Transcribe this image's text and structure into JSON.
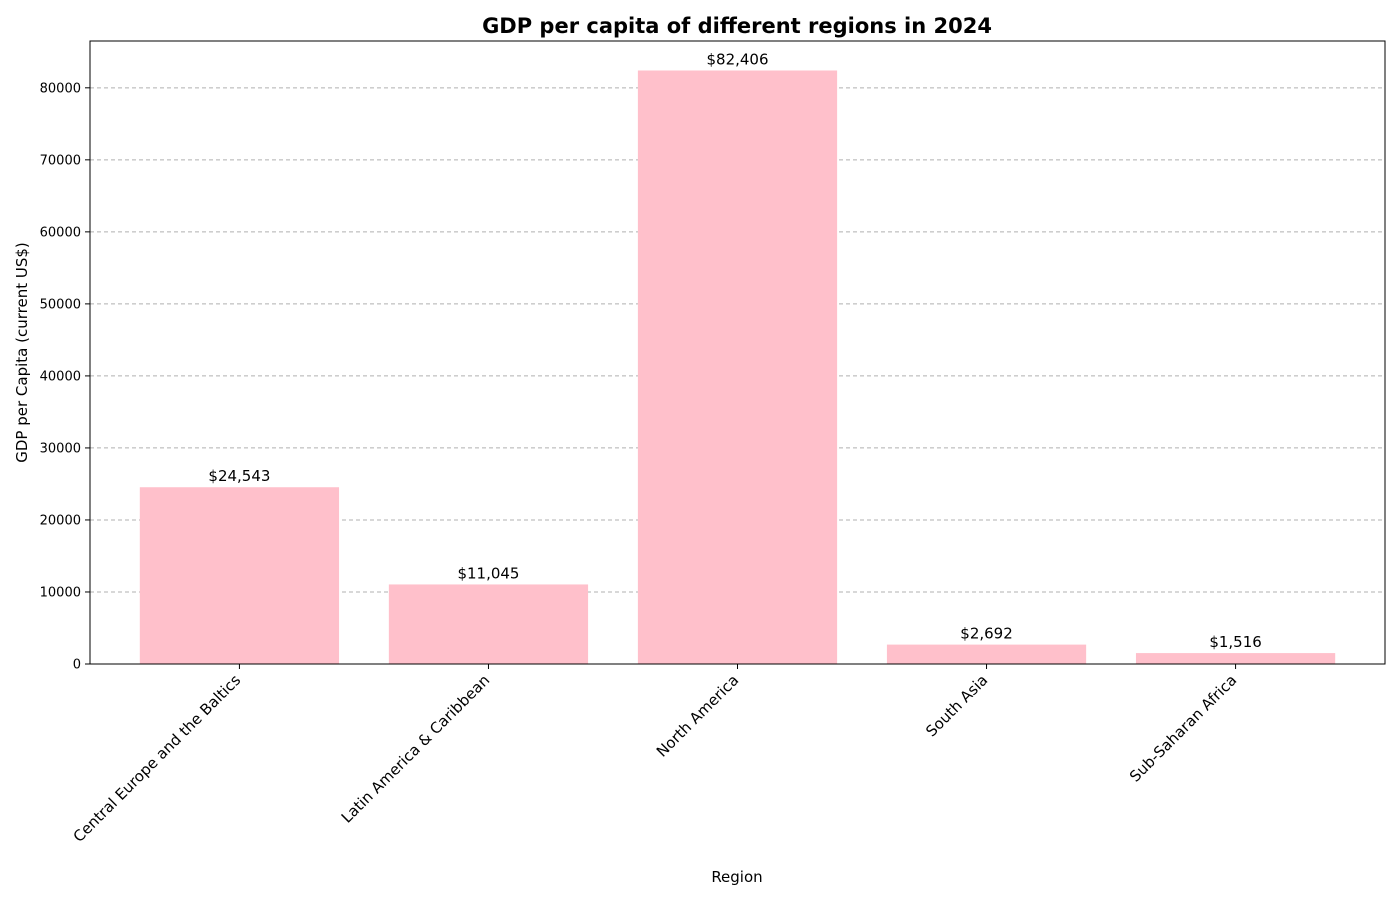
{
  "chart_data": {
    "type": "bar",
    "title": "GDP per capita of different regions in 2024",
    "xlabel": "Region",
    "ylabel": "GDP per Capita (current US$)",
    "categories": [
      "Central Europe and the Baltics",
      "Latin America & Caribbean",
      "North America",
      "South Asia",
      "Sub-Saharan Africa"
    ],
    "values": [
      24543,
      11045,
      82406,
      2692,
      1516
    ],
    "data_labels": [
      "$24,543",
      "$11,045",
      "$82,406",
      "$2,692",
      "$1,516"
    ],
    "ylim": [
      0,
      86500
    ],
    "yticks": [
      0,
      10000,
      20000,
      30000,
      40000,
      50000,
      60000,
      70000,
      80000
    ],
    "ytick_labels": [
      "0",
      "10000",
      "20000",
      "30000",
      "40000",
      "50000",
      "60000",
      "70000",
      "80000"
    ],
    "grid": "y-axis dashed",
    "bar_color": "#ffc0cb",
    "grid_color": "#b0b0b0",
    "x_tick_rotation": "45 degrees"
  }
}
